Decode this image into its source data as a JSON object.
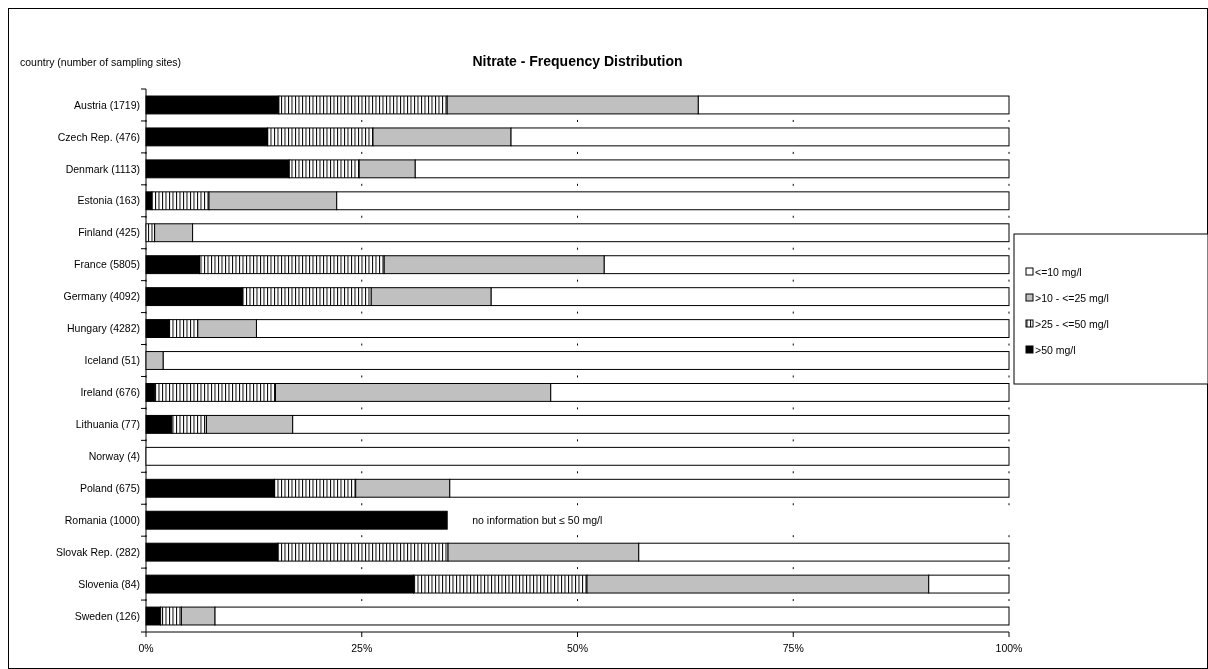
{
  "chart_data": {
    "type": "bar",
    "orientation": "horizontal",
    "stacked": true,
    "title": "Nitrate - Frequency Distribution",
    "ylabel": "country (number of sampling sites)",
    "categories": [
      "Austria (1719)",
      "Czech Rep. (476)",
      "Denmark (1113)",
      "Estonia (163)",
      "Finland (425)",
      "France (5805)",
      "Germany (4092)",
      "Hungary (4282)",
      "Iceland (51)",
      "Ireland (676)",
      "Lithuania (77)",
      "Norway (4)",
      "Poland (675)",
      "Romania (1000)",
      "Slovak Rep. (282)",
      "Slovenia (84)",
      "Sweden (126)"
    ],
    "series": [
      {
        "name": ">50 mg/l",
        "color": "#000000",
        "values": [
          15.4,
          14.1,
          16.6,
          0.7,
          0,
          6.2,
          11.2,
          2.7,
          0,
          1.0,
          3.0,
          0,
          14.9,
          34.9,
          15.3,
          31.0,
          1.7
        ]
      },
      {
        "name": ">25 - <=50 mg/l",
        "color": "#000000",
        "values": [
          19.5,
          12.2,
          8.1,
          6.6,
          1.0,
          21.4,
          14.9,
          3.3,
          0,
          14.0,
          4.0,
          0,
          9.4,
          null,
          19.7,
          20.1,
          2.4
        ]
      },
      {
        "name": ">10 - <=25 mg/l",
        "color": "#c0c0c0",
        "values": [
          29.1,
          16.0,
          6.5,
          14.8,
          4.4,
          25.5,
          13.9,
          6.8,
          2.0,
          31.9,
          10.0,
          0,
          10.9,
          null,
          22.1,
          39.6,
          3.9
        ]
      },
      {
        "name": "<=10 mg/l",
        "color": "#ffffff",
        "values": [
          36.0,
          57.7,
          68.8,
          77.9,
          94.6,
          46.9,
          60.0,
          87.2,
          98.0,
          53.1,
          83.0,
          100,
          64.8,
          null,
          42.9,
          9.3,
          92.0
        ]
      }
    ],
    "xlim": [
      0,
      100
    ],
    "xticks": [
      {
        "value": 0,
        "label": "0%"
      },
      {
        "value": 25,
        "label": "25%"
      },
      {
        "value": 50,
        "label": "50%"
      },
      {
        "value": 75,
        "label": "75%"
      },
      {
        "value": 100,
        "label": "100%"
      }
    ],
    "annotations": [
      "no information but ≤ 50 mg/l"
    ],
    "legend": "right"
  }
}
